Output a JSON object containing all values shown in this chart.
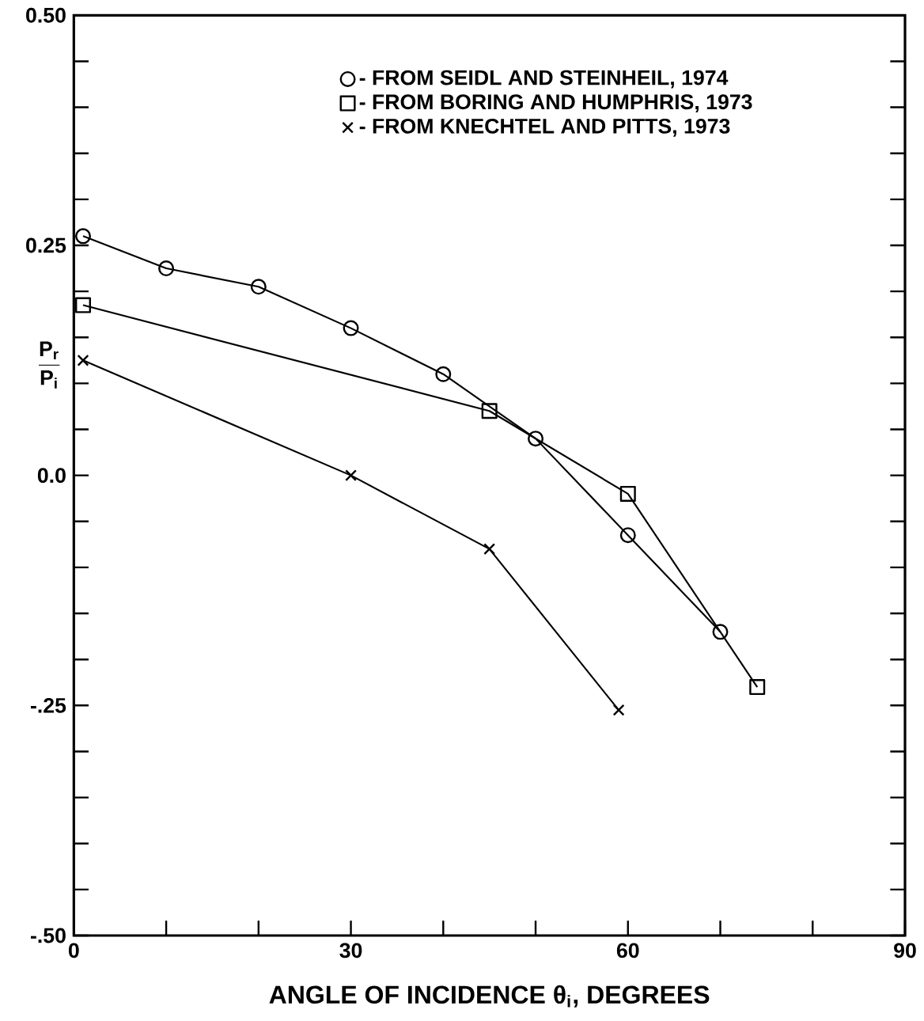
{
  "chart_data": {
    "type": "line",
    "xlabel": "ANGLE OF INCIDENCE θ$_{i}$, DEGREES",
    "ylabel": "\\frac{\\mathbf{P_r}}{\\mathbf{P_i}}",
    "xlim": [
      0,
      90
    ],
    "ylim": [
      -0.5,
      0.5
    ],
    "xticks": [
      0,
      {
        "value": 10,
        "label": null
      },
      {
        "value": 20,
        "label": null
      },
      30,
      {
        "value": 40,
        "label": null
      },
      {
        "value": 50,
        "label": null
      },
      60,
      {
        "value": 70,
        "label": null
      },
      {
        "value": 80,
        "label": null
      },
      90
    ],
    "yticks": [
      {
        "value": -0.5,
        "label": "-.50"
      },
      {
        "value": -0.45,
        "label": null
      },
      {
        "value": -0.4,
        "label": null
      },
      {
        "value": -0.35,
        "label": null
      },
      {
        "value": -0.3,
        "label": null
      },
      {
        "value": -0.25,
        "label": "-.25"
      },
      {
        "value": -0.2,
        "label": null
      },
      {
        "value": -0.15,
        "label": null
      },
      {
        "value": -0.1,
        "label": null
      },
      {
        "value": -0.05,
        "label": null
      },
      {
        "value": 0,
        "label": "0.0"
      },
      {
        "value": 0.05,
        "label": null
      },
      {
        "value": 0.1,
        "label": null
      },
      {
        "value": 0.15,
        "label": null
      },
      {
        "value": 0.2,
        "label": null
      },
      {
        "value": 0.25,
        "label": "0.25"
      },
      {
        "value": 0.3,
        "label": null
      },
      {
        "value": 0.35,
        "label": null
      },
      {
        "value": 0.4,
        "label": null
      },
      {
        "value": 0.45,
        "label": null
      },
      {
        "value": 0.5,
        "label": "0.50"
      }
    ],
    "grid": false,
    "legend": "top right",
    "line_style": "solid",
    "series": [
      {
        "name": "- FROM SEIDL AND STEINHEIL, 1974",
        "color": "#000000",
        "marker": "circle",
        "x": [
          1,
          10,
          20,
          30,
          40,
          50,
          60,
          70
        ],
        "values": [
          0.26,
          0.225,
          0.205,
          0.16,
          0.11,
          0.04,
          -0.065,
          -0.17
        ]
      },
      {
        "name": "- FROM BORING AND HUMPHRIS, 1973",
        "color": "#000000",
        "marker": "square",
        "x": [
          1,
          45,
          60,
          74
        ],
        "values": [
          0.185,
          0.07,
          -0.02,
          -0.23
        ]
      },
      {
        "name": "- FROM KNECHTEL AND PITTS, 1973",
        "color": "#000000",
        "marker": "cross",
        "x": [
          1,
          30,
          45,
          59
        ],
        "values": [
          0.125,
          0,
          -0.08,
          -0.255
        ]
      }
    ]
  }
}
